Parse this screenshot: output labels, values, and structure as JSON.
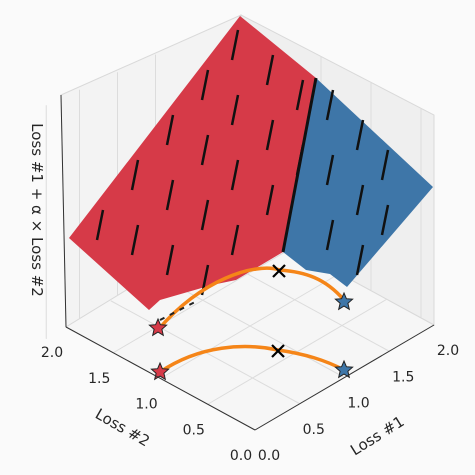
{
  "chart_data": {
    "type": "surface-3d",
    "title": "",
    "axes": {
      "x": {
        "label": "Loss #1",
        "ticks": [
          "0.0",
          "0.5",
          "1.0",
          "1.5",
          "2.0"
        ],
        "lim": [
          0,
          2
        ]
      },
      "y": {
        "label": "Loss #2",
        "ticks": [
          "0.0",
          "0.5",
          "1.0",
          "1.5",
          "2.0"
        ],
        "lim": [
          0,
          2
        ]
      },
      "z": {
        "label": "Loss #1 + α × Loss #2",
        "ticks": []
      }
    },
    "grid": true,
    "colors": {
      "left_region": "#d63a48",
      "right_region": "#3e76a8",
      "pareto_curve": "#f58518",
      "markers": "#000000",
      "pane": "#f2f2f2"
    },
    "pareto_front": {
      "description_points": [
        [
          0.0,
          1.25
        ],
        [
          0.25,
          1.32
        ],
        [
          0.5,
          1.3
        ],
        [
          0.75,
          1.22
        ],
        [
          1.0,
          1.07
        ],
        [
          1.2,
          0.88
        ],
        [
          1.3,
          0.55
        ],
        [
          1.32,
          0.28
        ],
        [
          1.25,
          0.0
        ]
      ]
    },
    "markers": [
      {
        "type": "star",
        "x": 0.0,
        "y": 1.25,
        "color": "#d63a48"
      },
      {
        "type": "star",
        "x": 1.25,
        "y": 0.0,
        "color": "#3e76a8"
      },
      {
        "type": "cross",
        "x": 1.0,
        "y": 1.07,
        "color": "#000000"
      }
    ]
  }
}
